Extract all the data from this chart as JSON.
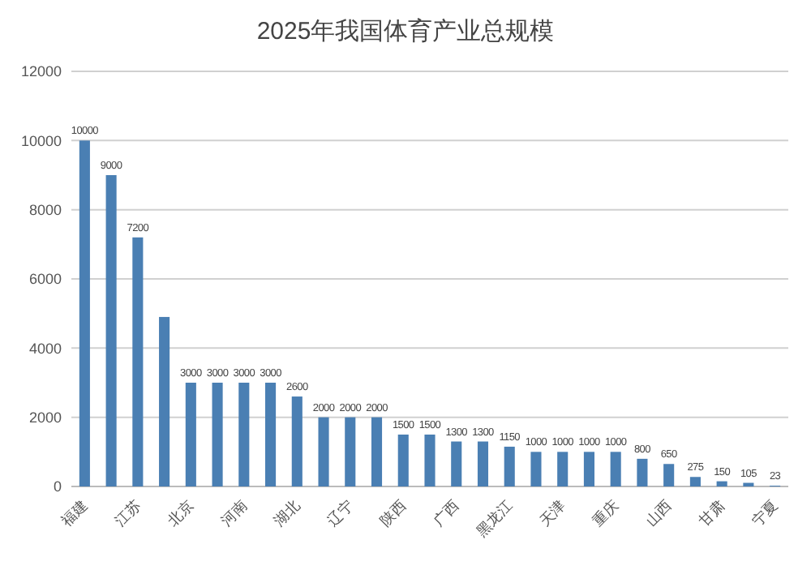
{
  "chart_data": {
    "type": "bar",
    "title": "2025年我国体育产业总规模",
    "categories": [
      "福建",
      null,
      "江苏",
      null,
      "北京",
      null,
      "河南",
      null,
      "湖北",
      null,
      "辽宁",
      null,
      "陕西",
      null,
      "广西",
      null,
      "黑龙江",
      null,
      "天津",
      null,
      "重庆",
      null,
      "山西",
      null,
      "甘肃",
      null,
      "宁夏"
    ],
    "values": [
      10000,
      9000,
      7200,
      4900,
      3000,
      3000,
      3000,
      3000,
      2600,
      2000,
      2000,
      2000,
      1500,
      1500,
      1300,
      1300,
      1150,
      1000,
      1000,
      1000,
      1000,
      800,
      650,
      275,
      150,
      105,
      23
    ],
    "value_labels": [
      "10000",
      "9000",
      "7200",
      null,
      "3000",
      "3000",
      "3000",
      "3000",
      "2600",
      "2000",
      "2000",
      "2000",
      "1500",
      "1500",
      "1300",
      "1300",
      "1150",
      "1000",
      "1000",
      "1000",
      "1000",
      "800",
      "650",
      "275",
      "150",
      "105",
      "23"
    ],
    "color": "#4a7fb3",
    "ylim": [
      0,
      12000
    ],
    "yticks": [
      0,
      2000,
      4000,
      6000,
      8000,
      10000,
      12000
    ],
    "grid": "y"
  }
}
